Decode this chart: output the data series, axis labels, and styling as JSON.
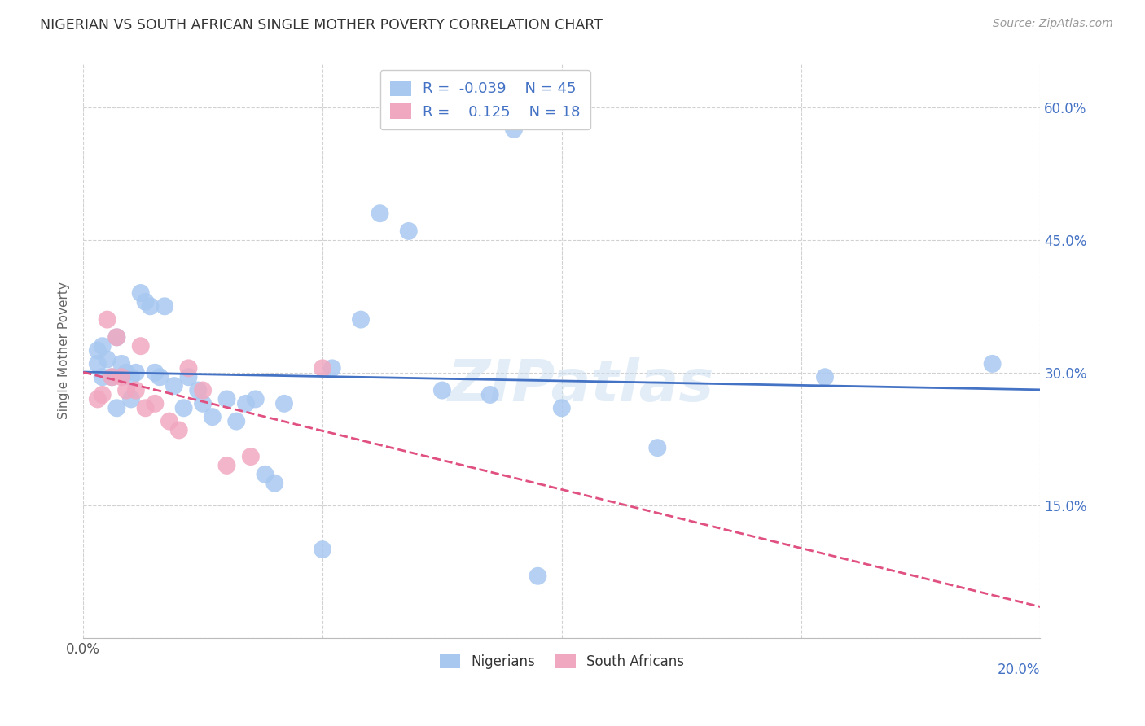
{
  "title": "NIGERIAN VS SOUTH AFRICAN SINGLE MOTHER POVERTY CORRELATION CHART",
  "source": "Source: ZipAtlas.com",
  "ylabel": "Single Mother Poverty",
  "xlim": [
    0.0,
    0.2
  ],
  "ylim": [
    0.0,
    0.65
  ],
  "x_ticks": [
    0.0,
    0.05,
    0.1,
    0.15,
    0.2
  ],
  "y_ticks": [
    0.0,
    0.15,
    0.3,
    0.45,
    0.6
  ],
  "y_tick_labels": [
    "",
    "15.0%",
    "30.0%",
    "45.0%",
    "60.0%"
  ],
  "legend_r_nigerian": "-0.039",
  "legend_n_nigerian": "45",
  "legend_r_southafrican": "0.125",
  "legend_n_southafrican": "18",
  "nigerian_color": "#a8c8f0",
  "southafrican_color": "#f0a8c0",
  "nigerian_line_color": "#4472C4",
  "southafrican_line_color": "#E05080",
  "background_color": "#ffffff",
  "watermark": "ZIPatlas",
  "nigerian_x": [
    0.003,
    0.003,
    0.004,
    0.004,
    0.005,
    0.006,
    0.007,
    0.007,
    0.008,
    0.009,
    0.01,
    0.01,
    0.011,
    0.012,
    0.013,
    0.014,
    0.015,
    0.016,
    0.017,
    0.019,
    0.021,
    0.022,
    0.024,
    0.025,
    0.027,
    0.03,
    0.032,
    0.034,
    0.036,
    0.038,
    0.04,
    0.042,
    0.05,
    0.052,
    0.058,
    0.062,
    0.068,
    0.075,
    0.085,
    0.09,
    0.095,
    0.1,
    0.12,
    0.155,
    0.19
  ],
  "nigerian_y": [
    0.325,
    0.31,
    0.295,
    0.33,
    0.315,
    0.295,
    0.34,
    0.26,
    0.31,
    0.3,
    0.295,
    0.27,
    0.3,
    0.39,
    0.38,
    0.375,
    0.3,
    0.295,
    0.375,
    0.285,
    0.26,
    0.295,
    0.28,
    0.265,
    0.25,
    0.27,
    0.245,
    0.265,
    0.27,
    0.185,
    0.175,
    0.265,
    0.1,
    0.305,
    0.36,
    0.48,
    0.46,
    0.28,
    0.275,
    0.575,
    0.07,
    0.26,
    0.215,
    0.295,
    0.31
  ],
  "southafrican_x": [
    0.003,
    0.004,
    0.005,
    0.006,
    0.007,
    0.008,
    0.009,
    0.011,
    0.012,
    0.013,
    0.015,
    0.018,
    0.02,
    0.022,
    0.025,
    0.03,
    0.035,
    0.05
  ],
  "southafrican_y": [
    0.27,
    0.275,
    0.36,
    0.295,
    0.34,
    0.295,
    0.28,
    0.28,
    0.33,
    0.26,
    0.265,
    0.245,
    0.235,
    0.305,
    0.28,
    0.195,
    0.205,
    0.305
  ]
}
